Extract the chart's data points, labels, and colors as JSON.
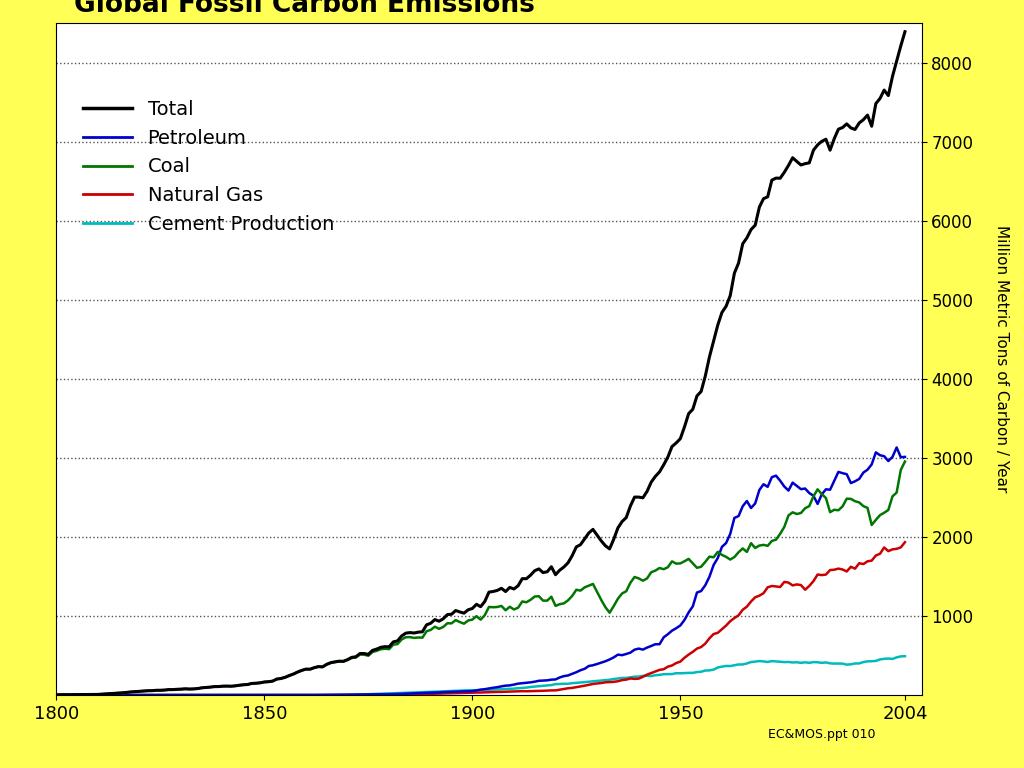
{
  "title": "Global Fossil Carbon Emissions",
  "ylabel": "Million Metric Tons of Carbon / Year",
  "xlim": [
    1800,
    2008
  ],
  "ylim": [
    0,
    8500
  ],
  "yticks": [
    1000,
    2000,
    3000,
    4000,
    5000,
    6000,
    7000,
    8000
  ],
  "xticks": [
    1800,
    1850,
    1900,
    1950,
    2004
  ],
  "background_color": "#ffffff",
  "outer_background": "#ffff55",
  "legend_entries": [
    "Total",
    "Petroleum",
    "Coal",
    "Natural Gas",
    "Cement Production"
  ],
  "legend_colors": [
    "#000000",
    "#0000cc",
    "#007700",
    "#cc0000",
    "#00bbbb"
  ],
  "line_widths": [
    2.2,
    1.8,
    1.8,
    1.8,
    1.8
  ],
  "watermark": "EC&MOS.ppt 010"
}
